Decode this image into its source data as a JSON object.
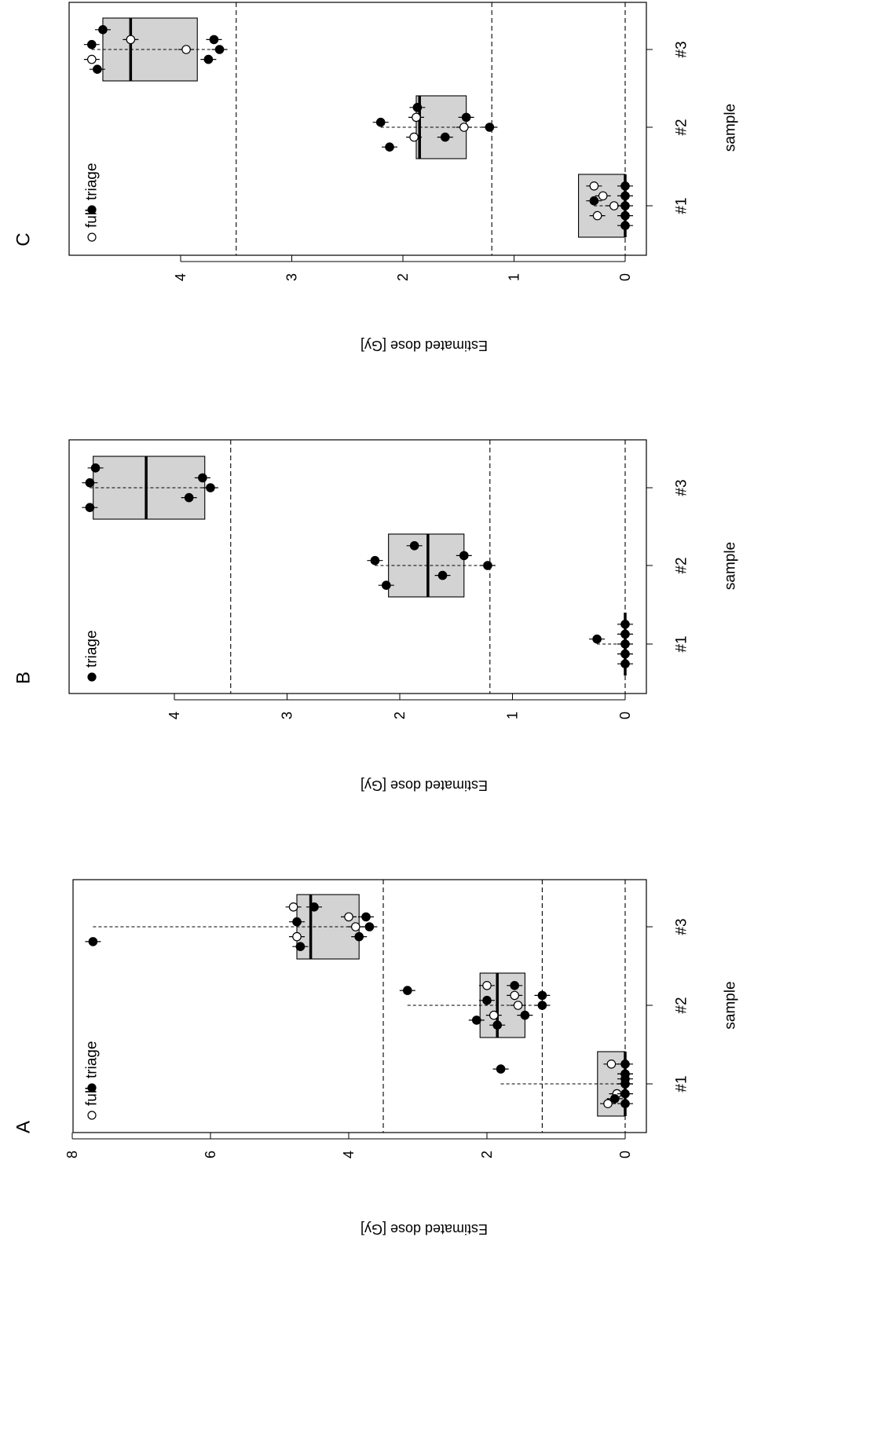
{
  "chart_data": [
    {
      "type": "box",
      "panel_label": "A",
      "xlabel": "sample",
      "ylabel": "Estimated dose [Gy]",
      "categories": [
        "#1",
        "#2",
        "#3"
      ],
      "ylim": [
        0,
        8
      ],
      "yticks": [
        0,
        2,
        4,
        6,
        8
      ],
      "reference_lines": [
        1.2,
        3.5
      ],
      "legend": {
        "position": "top-left",
        "entries": [
          {
            "label": "full",
            "marker": "open"
          },
          {
            "label": "triage",
            "marker": "filled"
          }
        ]
      },
      "boxes": [
        {
          "category": "#1",
          "q1": 0.0,
          "median": 0.0,
          "q3": 0.4
        },
        {
          "category": "#2",
          "q1": 1.45,
          "median": 1.85,
          "q3": 2.1
        },
        {
          "category": "#3",
          "q1": 3.85,
          "median": 4.55,
          "q3": 4.75
        }
      ],
      "series": [
        {
          "name": "full",
          "points": [
            {
              "category": "#1",
              "values": [
                0.0,
                0.0,
                0.12,
                0.2,
                0.25
              ]
            },
            {
              "category": "#2",
              "values": [
                1.55,
                1.6,
                1.9,
                2.0
              ]
            },
            {
              "category": "#3",
              "values": [
                3.9,
                4.0,
                4.75,
                4.8
              ]
            }
          ]
        },
        {
          "name": "triage",
          "points": [
            {
              "category": "#1",
              "values": [
                0.0,
                0.0,
                0.0,
                0.0,
                0.0,
                0.0,
                0.15,
                1.8
              ]
            },
            {
              "category": "#2",
              "values": [
                1.2,
                1.2,
                1.45,
                1.6,
                1.85,
                2.0,
                2.15,
                3.15
              ]
            },
            {
              "category": "#3",
              "values": [
                3.7,
                3.75,
                3.85,
                4.5,
                4.7,
                4.75,
                7.7
              ]
            }
          ]
        }
      ]
    },
    {
      "type": "box",
      "panel_label": "B",
      "xlabel": "sample",
      "ylabel": "Estimated dose [Gy]",
      "categories": [
        "#1",
        "#2",
        "#3"
      ],
      "ylim": [
        0,
        4.8
      ],
      "yticks": [
        0,
        1,
        2,
        3,
        4
      ],
      "reference_lines": [
        1.2,
        3.5
      ],
      "legend": {
        "position": "top-left",
        "entries": [
          {
            "label": "triage",
            "marker": "filled"
          }
        ]
      },
      "boxes": [
        {
          "category": "#1",
          "q1": 0.0,
          "median": 0.0,
          "q3": 0.0
        },
        {
          "category": "#2",
          "q1": 1.43,
          "median": 1.75,
          "q3": 2.1
        },
        {
          "category": "#3",
          "q1": 3.73,
          "median": 4.25,
          "q3": 4.72
        }
      ],
      "series": [
        {
          "name": "triage",
          "points": [
            {
              "category": "#1",
              "values": [
                0.0,
                0.0,
                0.0,
                0.0,
                0.0,
                0.25
              ]
            },
            {
              "category": "#2",
              "values": [
                1.22,
                1.43,
                1.62,
                1.87,
                2.12,
                2.22
              ]
            },
            {
              "category": "#3",
              "values": [
                3.68,
                3.75,
                3.87,
                4.7,
                4.75,
                4.75
              ]
            }
          ]
        }
      ]
    },
    {
      "type": "box",
      "panel_label": "C",
      "xlabel": "sample",
      "ylabel": "Estimated dose [Gy]",
      "categories": [
        "#1",
        "#2",
        "#3"
      ],
      "ylim": [
        0,
        4.8
      ],
      "yticks": [
        0,
        1,
        2,
        3,
        4
      ],
      "reference_lines": [
        1.2,
        3.5
      ],
      "legend": {
        "position": "top-left",
        "entries": [
          {
            "label": "full",
            "marker": "open"
          },
          {
            "label": "triage",
            "marker": "filled"
          }
        ]
      },
      "boxes": [
        {
          "category": "#1",
          "q1": 0.0,
          "median": 0.0,
          "q3": 0.42
        },
        {
          "category": "#2",
          "q1": 1.43,
          "median": 1.85,
          "q3": 1.88
        },
        {
          "category": "#3",
          "q1": 3.85,
          "median": 4.45,
          "q3": 4.7
        }
      ],
      "series": [
        {
          "name": "full",
          "points": [
            {
              "category": "#1",
              "values": [
                0.1,
                0.2,
                0.25,
                0.28
              ]
            },
            {
              "category": "#2",
              "values": [
                1.45,
                1.88,
                1.9
              ]
            },
            {
              "category": "#3",
              "values": [
                3.95,
                4.45,
                4.8
              ]
            }
          ]
        },
        {
          "name": "triage",
          "points": [
            {
              "category": "#1",
              "values": [
                0.0,
                0.0,
                0.0,
                0.0,
                0.0,
                0.28
              ]
            },
            {
              "category": "#2",
              "values": [
                1.22,
                1.43,
                1.62,
                1.87,
                2.12,
                2.2
              ]
            },
            {
              "category": "#3",
              "values": [
                3.65,
                3.7,
                3.75,
                4.7,
                4.75,
                4.8
              ]
            }
          ]
        }
      ]
    }
  ]
}
